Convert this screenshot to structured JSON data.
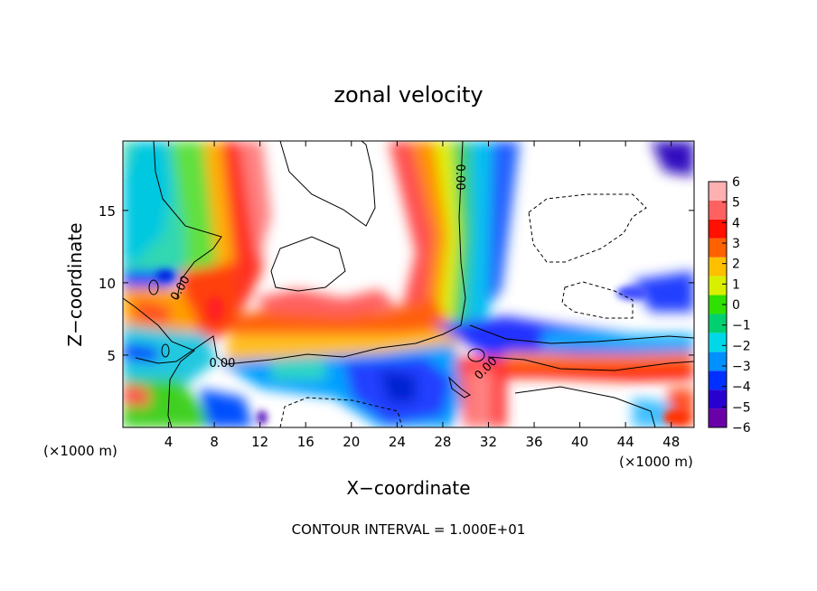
{
  "chart_data": {
    "type": "heatmap",
    "title": "zonal velocity",
    "xlabel": "X−coordinate",
    "ylabel": "Z−coordinate",
    "x_unit_left": "(×1000 m)",
    "x_unit_right": "(×1000 m)",
    "footer": "CONTOUR INTERVAL = 1.000E+01",
    "xlim": [
      0,
      50
    ],
    "ylim": [
      0,
      19.8
    ],
    "x_ticks": [
      {
        "value": 4,
        "label": "4"
      },
      {
        "value": 8,
        "label": "8"
      },
      {
        "value": 12,
        "label": "12"
      },
      {
        "value": 16,
        "label": "16"
      },
      {
        "value": 20,
        "label": "20"
      },
      {
        "value": 24,
        "label": "24"
      },
      {
        "value": 28,
        "label": "28"
      },
      {
        "value": 32,
        "label": "32"
      },
      {
        "value": 36,
        "label": "36"
      },
      {
        "value": 40,
        "label": "40"
      },
      {
        "value": 44,
        "label": "44"
      },
      {
        "value": 48,
        "label": "48"
      }
    ],
    "y_ticks": [
      {
        "value": 5,
        "label": "5"
      },
      {
        "value": 10,
        "label": "10"
      },
      {
        "value": 15,
        "label": "15"
      }
    ],
    "colorbar": {
      "min": -6,
      "max": 6,
      "ticks": [
        {
          "value": 6,
          "label": "6"
        },
        {
          "value": 5,
          "label": "5"
        },
        {
          "value": 4,
          "label": "4"
        },
        {
          "value": 3,
          "label": "3"
        },
        {
          "value": 2,
          "label": "2"
        },
        {
          "value": 1,
          "label": "1"
        },
        {
          "value": 0,
          "label": "0"
        },
        {
          "value": -1,
          "label": "−1"
        },
        {
          "value": -2,
          "label": "−2"
        },
        {
          "value": -3,
          "label": "−3"
        },
        {
          "value": -4,
          "label": "−4"
        },
        {
          "value": -5,
          "label": "−5"
        },
        {
          "value": -6,
          "label": "−6"
        }
      ],
      "colors": [
        "#6a00a8",
        "#2800d0",
        "#0030ff",
        "#0090ff",
        "#00d8e8",
        "#00d070",
        "#30e000",
        "#d8f000",
        "#ffc000",
        "#ff6000",
        "#ff1000",
        "#ff6060",
        "#ffb0b0"
      ]
    },
    "contour_labels": [
      {
        "text": "0.00",
        "x": 5.3,
        "y": 9.5,
        "rotate": -60
      },
      {
        "text": "0.00",
        "x": 29.2,
        "y": 17.3,
        "rotate": 90
      },
      {
        "text": "0.00",
        "x": 8.7,
        "y": 4.2,
        "rotate": 0
      },
      {
        "text": "0.00",
        "x": 32.0,
        "y": 3.9,
        "rotate": -45
      }
    ],
    "field_samples": [
      {
        "x": 1,
        "y": 17,
        "u": -1.5
      },
      {
        "x": 3,
        "y": 14,
        "u": -1
      },
      {
        "x": 6,
        "y": 16,
        "u": 1
      },
      {
        "x": 8.5,
        "y": 16,
        "u": 4
      },
      {
        "x": 10,
        "y": 18,
        "u": 6
      },
      {
        "x": 8,
        "y": 8,
        "u": 5
      },
      {
        "x": 2.5,
        "y": 8,
        "u": 3
      },
      {
        "x": 2,
        "y": 4,
        "u": -4
      },
      {
        "x": 12,
        "y": 7,
        "u": 4
      },
      {
        "x": 20,
        "y": 6.5,
        "u": 3.5
      },
      {
        "x": 26,
        "y": 3,
        "u": -4
      },
      {
        "x": 24,
        "y": 2,
        "u": -5
      },
      {
        "x": 26,
        "y": 16,
        "u": 5
      },
      {
        "x": 28,
        "y": 14,
        "u": 1
      },
      {
        "x": 30,
        "y": 12,
        "u": -1.5
      },
      {
        "x": 33,
        "y": 8,
        "u": -4
      },
      {
        "x": 40,
        "y": 6.5,
        "u": -5
      },
      {
        "x": 48,
        "y": 9,
        "u": -5
      },
      {
        "x": 47,
        "y": 19,
        "u": -5
      },
      {
        "x": 40,
        "y": 3.5,
        "u": 4
      },
      {
        "x": 31,
        "y": 1,
        "u": 6
      },
      {
        "x": 15,
        "y": 16,
        "u": 8
      },
      {
        "x": 40,
        "y": 14,
        "u": 8
      },
      {
        "x": 20,
        "y": 1.5,
        "u": 8
      }
    ]
  }
}
